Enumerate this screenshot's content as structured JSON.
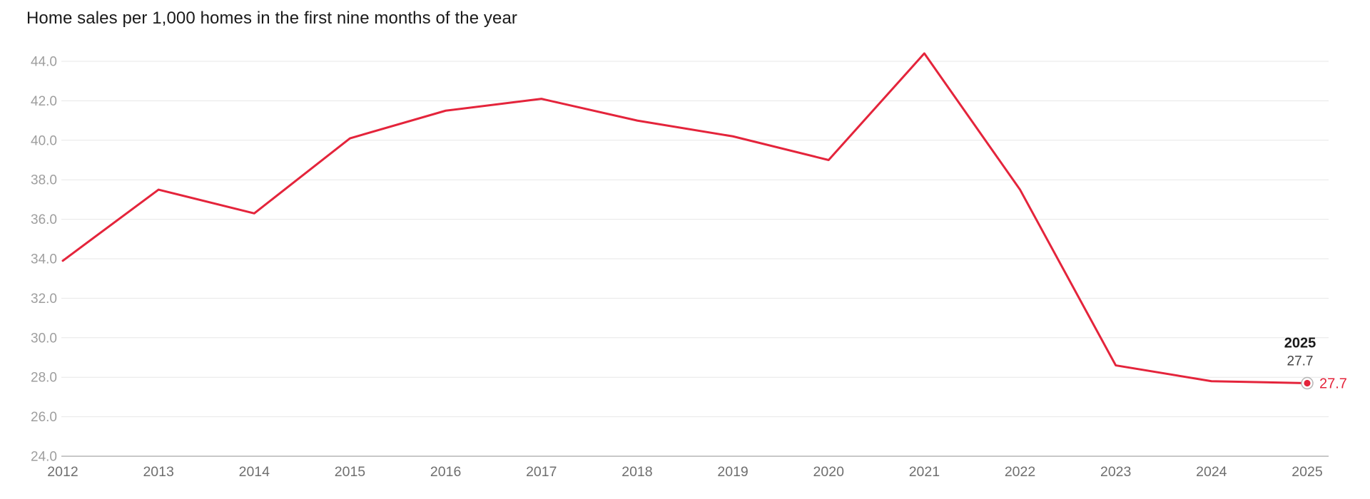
{
  "chart_data": {
    "type": "line",
    "title": "Home sales per 1,000 homes in the first nine months of the year",
    "categories": [
      "2012",
      "2013",
      "2014",
      "2015",
      "2016",
      "2017",
      "2018",
      "2019",
      "2020",
      "2021",
      "2022",
      "2023",
      "2024",
      "2025"
    ],
    "series": [
      {
        "name": "Home sales per 1,000 homes",
        "values": [
          33.9,
          37.5,
          36.3,
          40.1,
          41.5,
          42.1,
          41.0,
          40.2,
          39.0,
          44.4,
          37.5,
          28.6,
          27.8,
          27.7
        ]
      }
    ],
    "xlabel": "",
    "ylabel": "",
    "ylim": [
      24.0,
      44.0
    ],
    "ytick_step": 2.0,
    "ytick_decimals": 1,
    "grid": "horizontal",
    "legend": "none",
    "annotation": {
      "year_label": "2025",
      "value_label": "27.7"
    },
    "end_value_label": "27.7",
    "colors": {
      "line": "#e4243b",
      "grid": "#e7e7e7",
      "axis": "#b5b5b5",
      "y_tick": "#9e9e9e",
      "x_tick": "#6e6e6e",
      "title": "#1a1a1a",
      "annotation_year": "#1a1a1a",
      "annotation_value": "#444444",
      "end_label": "#e4243b",
      "marker_ring": "#b5b5b5",
      "marker_ring_fill": "#ffffff"
    }
  }
}
